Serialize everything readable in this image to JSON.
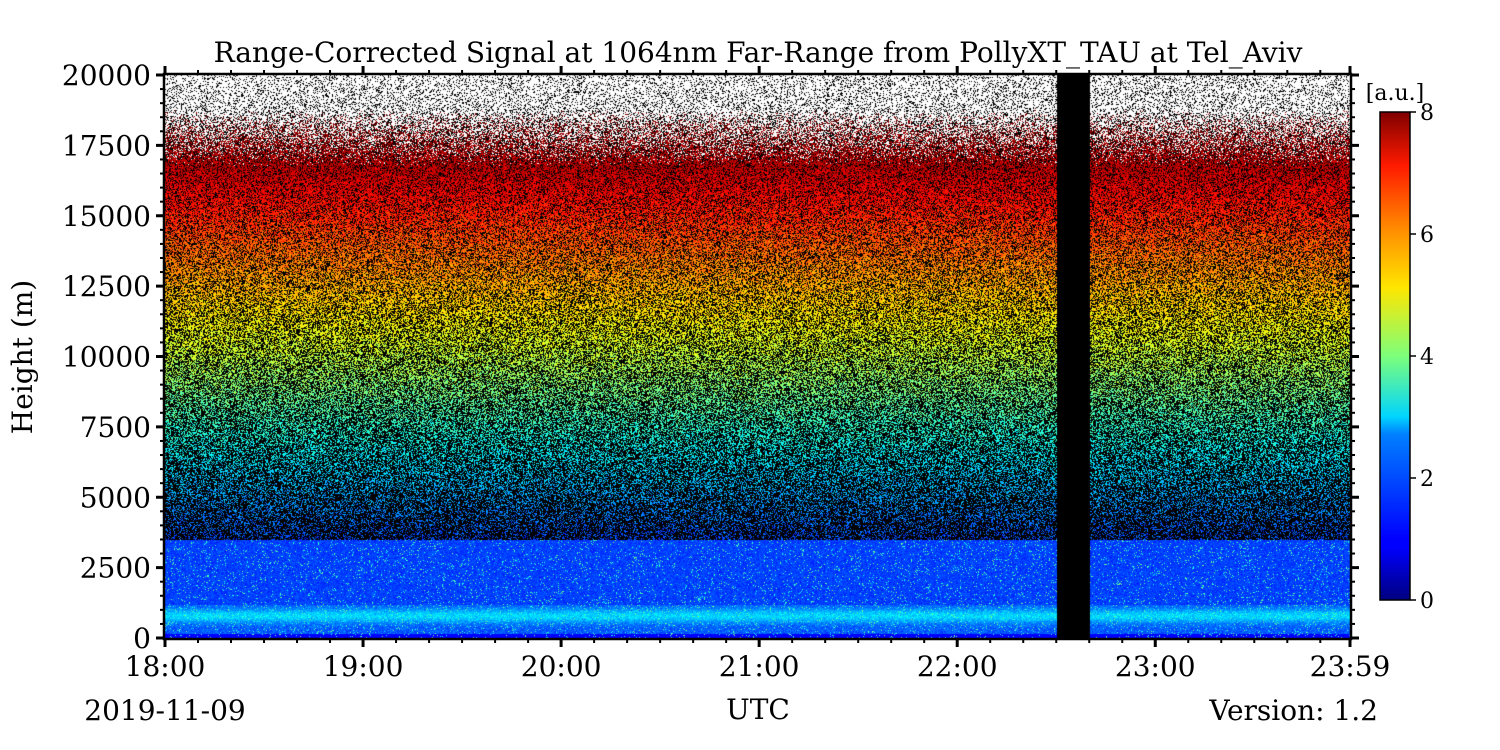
{
  "chart_data": {
    "type": "heatmap",
    "title": "Range-Corrected Signal at 1064nm Far-Range from PollyXT_TAU at Tel_Aviv",
    "xlabel": "UTC",
    "ylabel": "Height (m)",
    "x_ticks": [
      "18:00",
      "19:00",
      "20:00",
      "21:00",
      "22:00",
      "23:00",
      "23:59"
    ],
    "x_tick_hours": [
      18,
      19,
      20,
      21,
      22,
      23,
      23.9833
    ],
    "xlim_hours": [
      18,
      23.9833
    ],
    "y_ticks": [
      0,
      2500,
      5000,
      7500,
      10000,
      12500,
      15000,
      17500,
      20000
    ],
    "ylim": [
      0,
      20000
    ],
    "colorbar": {
      "label": "[a.u.]",
      "ticks": [
        0,
        2,
        4,
        6,
        8
      ],
      "range": [
        0,
        8
      ],
      "colormap": "jet"
    },
    "no_data_period_hours": [
      22.5,
      22.67
    ],
    "boundary_layer_top_m": 3500,
    "date": "2019-11-09",
    "version": "Version: 1.2"
  },
  "colors": {
    "background": "#ffffff",
    "no_data": "#000000",
    "noise_floor": "#000000",
    "saturated": "#ffffff"
  }
}
